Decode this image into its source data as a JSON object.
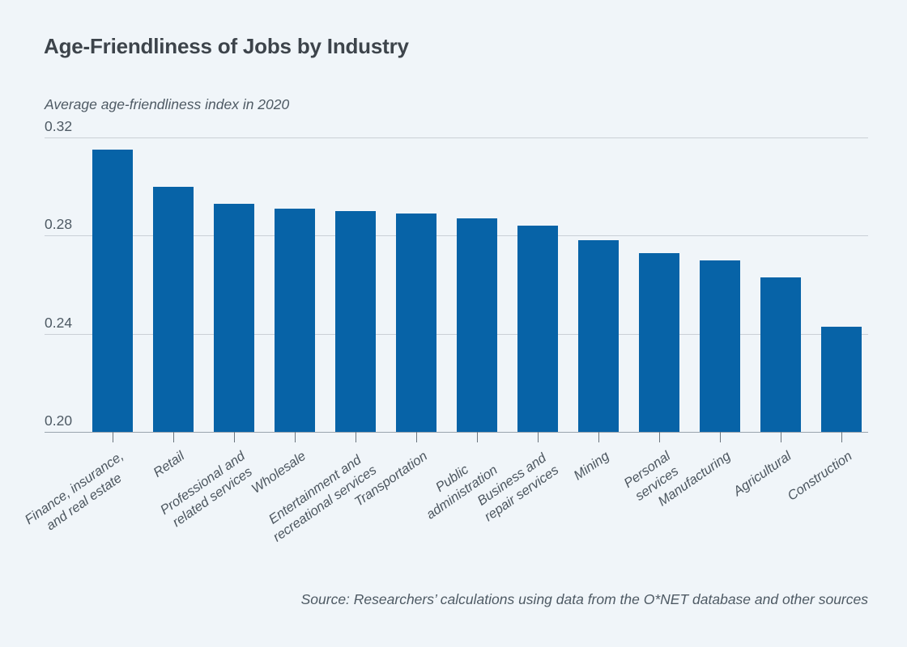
{
  "header": {
    "title": "Age-Friendliness of Jobs by Industry",
    "subtitle": "Average age-friendliness index in 2020"
  },
  "footer": {
    "source": "Source: Researchers’ calculations using data from the O*NET database and other sources"
  },
  "chart_data": {
    "type": "bar",
    "title": "Age-Friendliness of Jobs by Industry",
    "ylabel_note": "Average age-friendliness index in 2020",
    "categories": [
      "Finance, insurance,\nand real estate",
      "Retail",
      "Professional and\nrelated services",
      "Wholesale",
      "Entertainment and\nrecreational services",
      "Transportation",
      "Public\nadministration",
      "Business and\nrepair services",
      "Mining",
      "Personal\nservices",
      "Manufacturing",
      "Agricultural",
      "Construction"
    ],
    "values": [
      0.315,
      0.3,
      0.293,
      0.291,
      0.29,
      0.289,
      0.287,
      0.284,
      0.278,
      0.273,
      0.27,
      0.263,
      0.243
    ],
    "ylim": [
      0.2,
      0.32
    ],
    "yticks": [
      0.32,
      0.28,
      0.24,
      0.2
    ],
    "ytick_labels": [
      "0.32",
      "0.28",
      "0.24",
      "0.20"
    ],
    "grid": true,
    "legend": "none",
    "bar_color": "#0763a7",
    "source": "Source: Researchers’ calculations using data from the O*NET database and other sources"
  },
  "colors": {
    "background": "#f0f5f9",
    "bar": "#0763a7",
    "title_text": "#3d444b",
    "muted_text": "#4e5a64",
    "axis_label_text": "#4c565f",
    "gridline": "#cad0d6",
    "axis_baseline": "#9aa4ae",
    "tick_mark": "#6b757e"
  }
}
